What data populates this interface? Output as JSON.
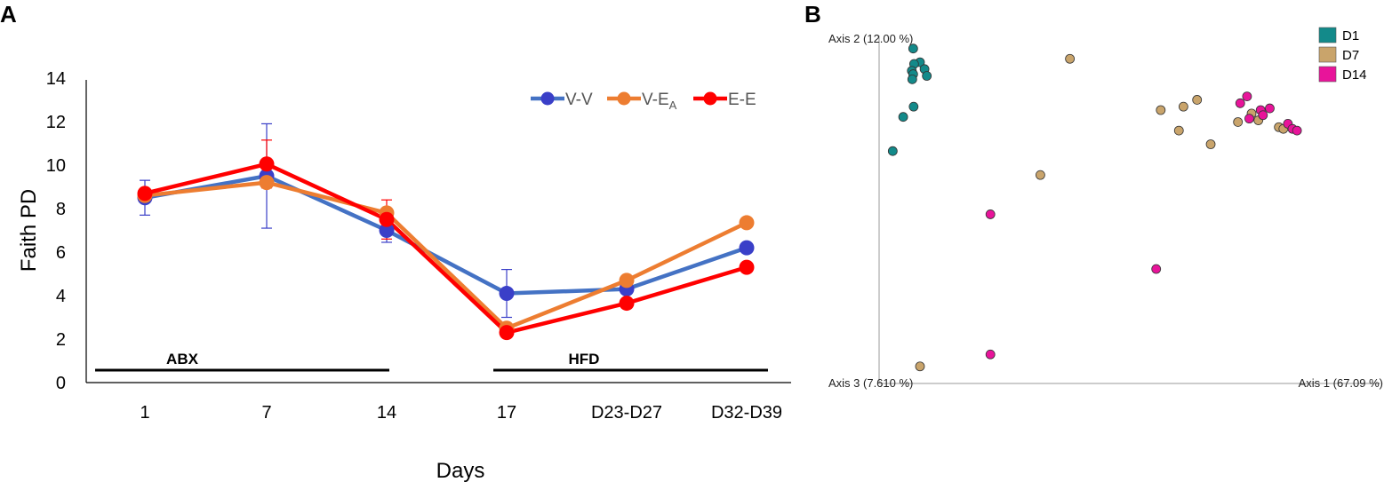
{
  "panel_labels": {
    "a": "A",
    "b": "B"
  },
  "chart_data": [
    {
      "type": "line",
      "categories": [
        "1",
        "7",
        "14",
        "17",
        "D23-D27",
        "D32-D39"
      ],
      "ylabel": "Faith PD",
      "xlabel": "Days",
      "ylim": [
        0,
        14
      ],
      "yticks": [
        0,
        2,
        4,
        6,
        8,
        10,
        12,
        14
      ],
      "series": [
        {
          "name": "V-V",
          "legend_main": "V-V",
          "legend_sub": "",
          "color": "#4472C4",
          "marker_color": "#3A3FC8",
          "values": [
            8.5,
            9.5,
            7.0,
            4.1,
            4.3,
            6.2
          ],
          "errors": [
            0.8,
            2.4,
            0.55,
            1.1,
            null,
            null
          ]
        },
        {
          "name": "V-EA",
          "legend_main": "V-E",
          "legend_sub": "A",
          "color": "#ED7D31",
          "marker_color": "#ED7D31",
          "values": [
            8.6,
            9.2,
            7.8,
            2.5,
            4.7,
            7.35
          ],
          "errors": [
            null,
            null,
            null,
            null,
            null,
            null
          ]
        },
        {
          "name": "E-E",
          "legend_main": "E-E",
          "legend_sub": "",
          "color": "#FF0000",
          "marker_color": "#FF0000",
          "values": [
            8.7,
            10.05,
            7.5,
            2.3,
            3.65,
            5.3
          ],
          "errors": [
            null,
            1.1,
            0.9,
            null,
            null,
            null
          ]
        }
      ],
      "annotations": [
        {
          "label": "ABX",
          "from_category": 0,
          "to_category": 2
        },
        {
          "label": "HFD",
          "from_category": 3,
          "to_category": 5
        }
      ]
    },
    {
      "type": "scatter",
      "axis_labels": {
        "axis1": "Axis 1 (67.09 %)",
        "axis2": "Axis 2 (12.00 %)",
        "axis3": "Axis 3 (7.610 %)"
      },
      "xlim": [
        0,
        100
      ],
      "ylim": [
        0,
        100
      ],
      "groups": [
        {
          "name": "D1",
          "color": "#138A8A",
          "points": [
            [
              7.5,
              98
            ],
            [
              9,
              94
            ],
            [
              7.7,
              93.5
            ],
            [
              7.2,
              91.5
            ],
            [
              7.5,
              90.5
            ],
            [
              10,
              92
            ],
            [
              7.3,
              89
            ],
            [
              10.5,
              90
            ],
            [
              7.6,
              81
            ],
            [
              5.3,
              78
            ],
            [
              3,
              68
            ]
          ]
        },
        {
          "name": "D7",
          "color": "#C9A46B",
          "points": [
            [
              42,
              95
            ],
            [
              62,
              80
            ],
            [
              67,
              81
            ],
            [
              70,
              83
            ],
            [
              66,
              74
            ],
            [
              73,
              70
            ],
            [
              79,
              76.5
            ],
            [
              82,
              79
            ],
            [
              83.5,
              77
            ],
            [
              88,
              75
            ],
            [
              89,
              74.5
            ],
            [
              35.5,
              61
            ],
            [
              9,
              5
            ]
          ]
        },
        {
          "name": "D14",
          "color": "#E8149A",
          "points": [
            [
              79.5,
              82
            ],
            [
              81,
              84
            ],
            [
              81.5,
              77.5
            ],
            [
              84,
              80
            ],
            [
              84.5,
              78.5
            ],
            [
              86,
              80.5
            ],
            [
              90,
              76
            ],
            [
              91,
              74.5
            ],
            [
              92,
              74
            ],
            [
              24.5,
              49.5
            ],
            [
              61,
              33.5
            ],
            [
              24.5,
              8.5
            ]
          ]
        }
      ]
    }
  ]
}
